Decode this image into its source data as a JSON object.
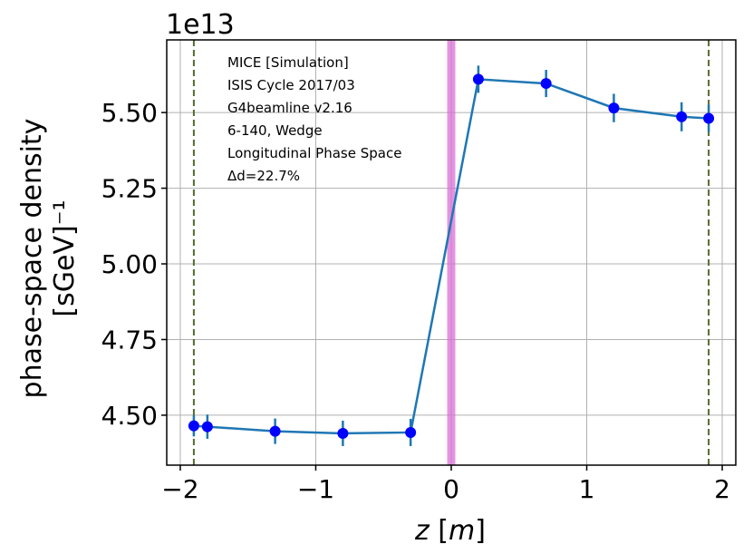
{
  "chart_data": {
    "type": "scatter",
    "xlabel": "z [m]",
    "ylabel_line1": "phase-space density",
    "ylabel_line2": "[sGeV]⁻¹",
    "y_offset_text": "1e13",
    "xlim": [
      -2.1,
      2.1
    ],
    "ylim": [
      4.335,
      5.74
    ],
    "x_ticks": [
      -2,
      -1,
      0,
      1,
      2
    ],
    "x_tick_labels": [
      "−2",
      "−1",
      "0",
      "1",
      "2"
    ],
    "y_ticks": [
      4.5,
      4.75,
      5.0,
      5.25,
      5.5
    ],
    "y_tick_labels": [
      "4.50",
      "4.75",
      "5.00",
      "5.25",
      "5.50"
    ],
    "grid": true,
    "series": [
      {
        "x": [
          -1.9,
          -1.8,
          -1.3,
          -0.8,
          -0.3,
          0.2,
          0.7,
          1.2,
          1.7,
          1.9
        ],
        "y": [
          4.465,
          4.462,
          4.447,
          4.44,
          4.443,
          5.61,
          5.596,
          5.515,
          5.486,
          5.481
        ],
        "yerr": [
          0.035,
          0.04,
          0.042,
          0.042,
          0.045,
          0.045,
          0.045,
          0.047,
          0.048,
          0.045
        ],
        "line_color": "#1f77b4",
        "marker_color": "#0000ff"
      }
    ],
    "vlines": [
      {
        "x": -1.9,
        "style": "dashed",
        "color": "#556b2f"
      },
      {
        "x": 1.9,
        "style": "dashed",
        "color": "#556b2f"
      }
    ],
    "vspan": {
      "x0": -0.03,
      "x1": 0.03,
      "color": "#da70d6"
    },
    "annotations": [
      "MICE [Simulation]",
      "ISIS Cycle 2017/03",
      "G4beamline v2.16",
      "6-140, Wedge",
      "Longitudinal Phase Space",
      "Δd=22.7%"
    ]
  }
}
